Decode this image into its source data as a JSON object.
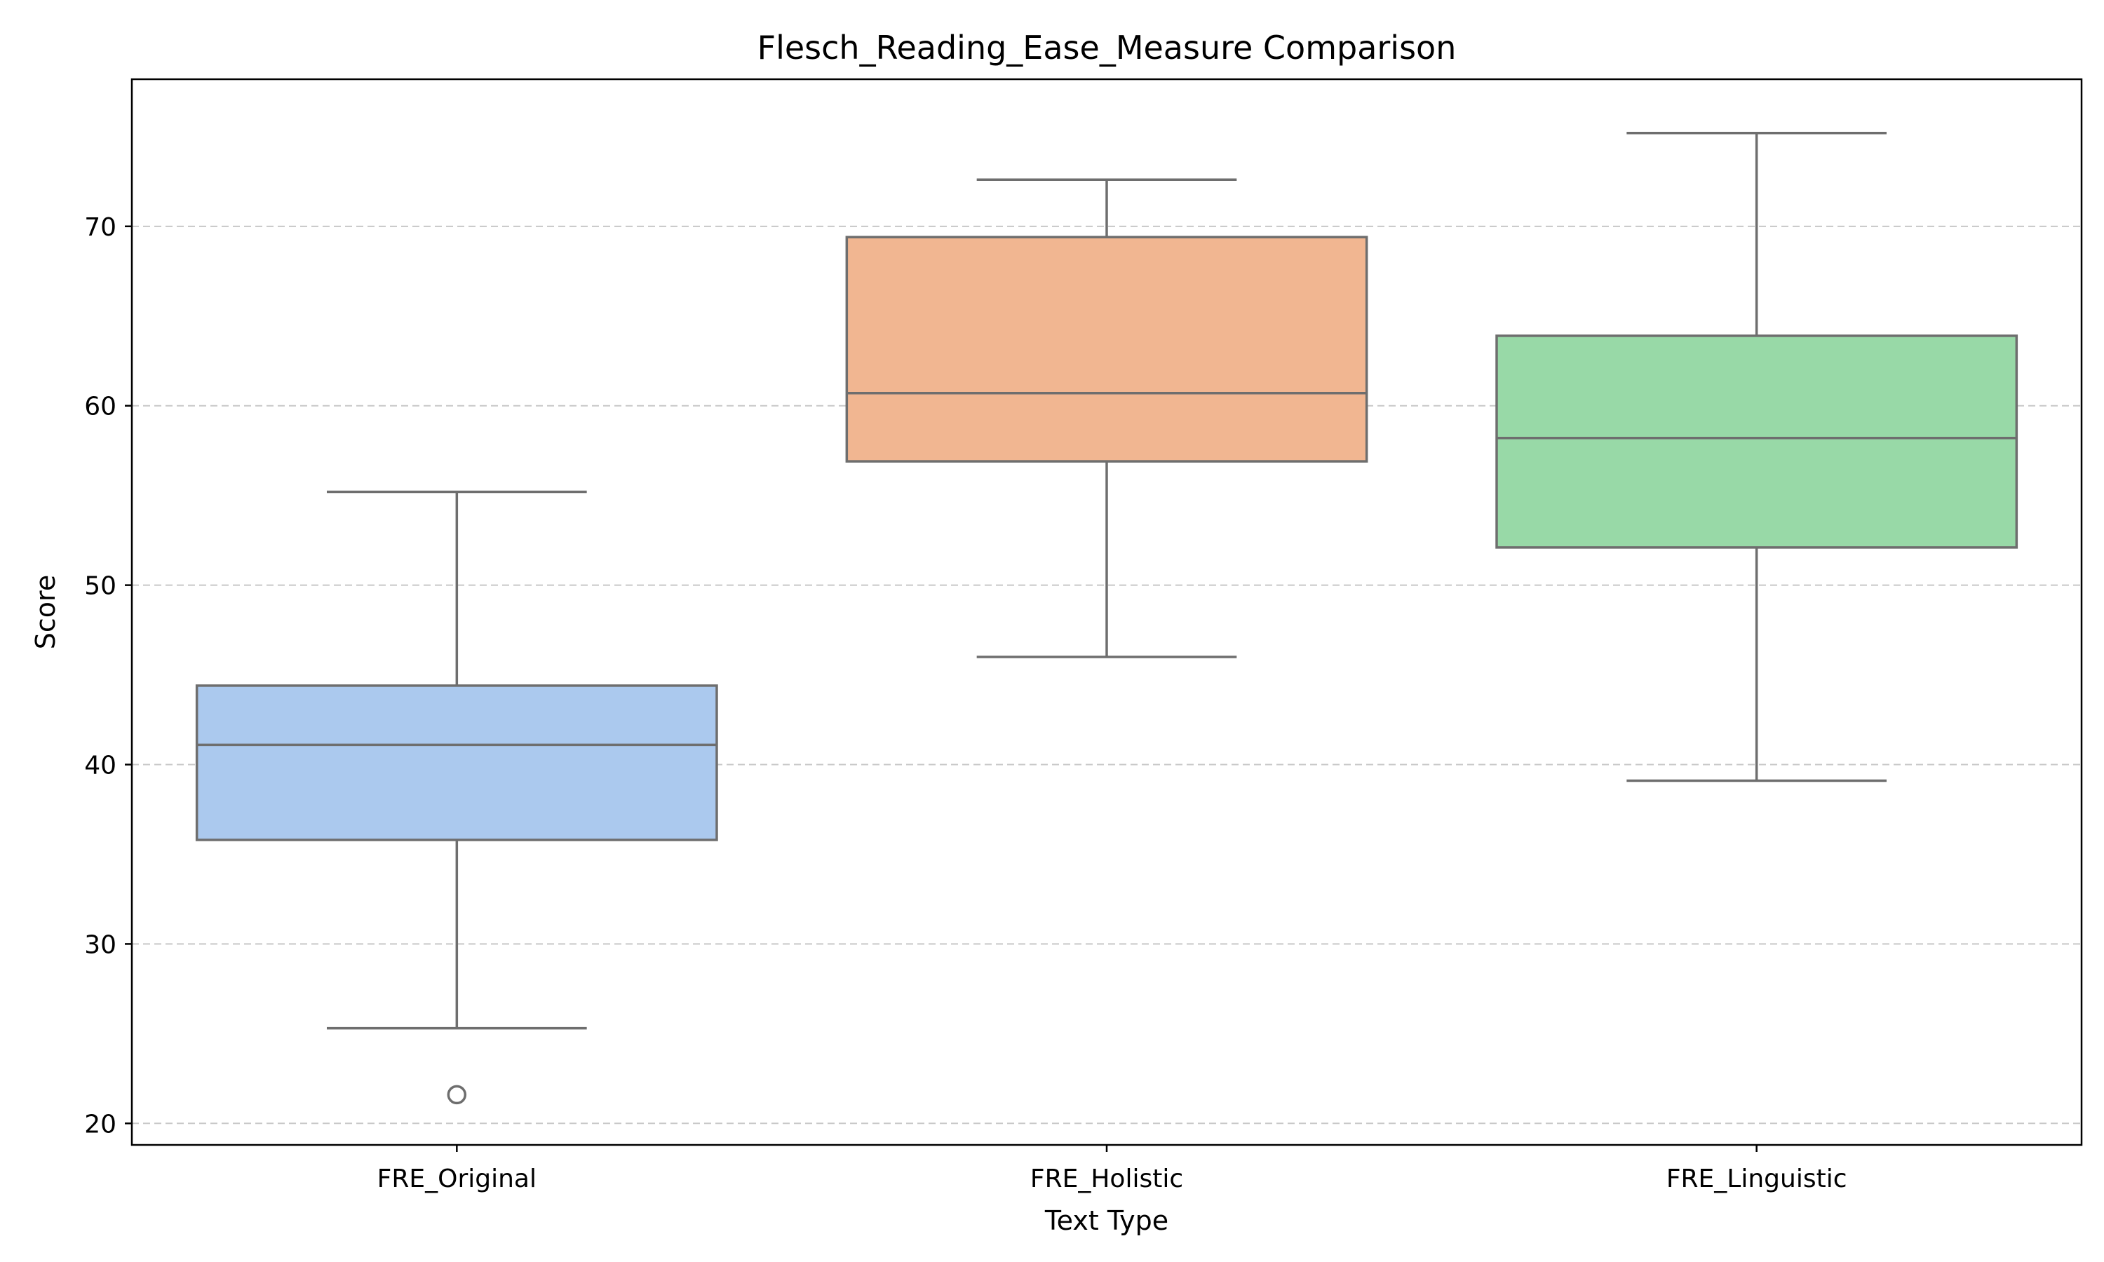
{
  "chart_data": {
    "type": "box",
    "title": "Flesch_Reading_Ease_Measure Comparison",
    "xlabel": "Text Type",
    "ylabel": "Score",
    "ylim": [
      18.8,
      78.2
    ],
    "yticks": [
      20,
      30,
      40,
      50,
      60,
      70
    ],
    "grid": "horizontal-dashed",
    "categories": [
      "FRE_Original",
      "FRE_Holistic",
      "FRE_Linguistic"
    ],
    "boxes": [
      {
        "category": "FRE_Original",
        "whisker_low": 25.3,
        "q1": 35.8,
        "median": 41.1,
        "q3": 44.4,
        "whisker_high": 55.2,
        "outliers": [
          21.6
        ],
        "color": "#abc9ee"
      },
      {
        "category": "FRE_Holistic",
        "whisker_low": 46.0,
        "q1": 56.9,
        "median": 60.7,
        "q3": 69.4,
        "whisker_high": 72.6,
        "outliers": [],
        "color": "#f1b691"
      },
      {
        "category": "FRE_Linguistic",
        "whisker_low": 39.1,
        "q1": 52.1,
        "median": 58.2,
        "q3": 63.9,
        "whisker_high": 75.2,
        "outliers": [],
        "color": "#98d9a7"
      }
    ]
  }
}
